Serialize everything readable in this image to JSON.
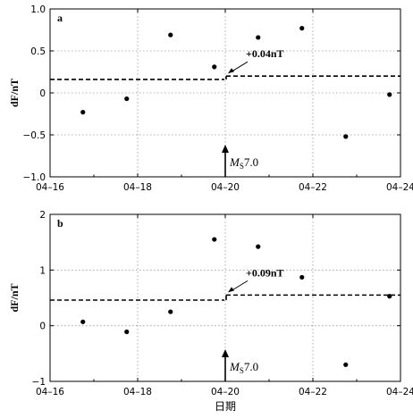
{
  "chart_data": [
    {
      "panel": "a",
      "type": "scatter",
      "xlabel": "",
      "ylabel": "dF/nT",
      "x_ticks": [
        "04–16",
        "04–18",
        "04–20",
        "04–22",
        "04–24"
      ],
      "y_ticks": [
        "1.0",
        "0.5",
        "0",
        "−0.5",
        "−1.0"
      ],
      "xlim": [
        0,
        8
      ],
      "ylim": [
        -1.0,
        1.0
      ],
      "yticks": [
        1.0,
        0.5,
        0,
        -0.5,
        -1.0
      ],
      "grid": true,
      "points": [
        {
          "x": 0.75,
          "y": -0.23
        },
        {
          "x": 1.75,
          "y": -0.07
        },
        {
          "x": 2.75,
          "y": 0.69
        },
        {
          "x": 3.75,
          "y": 0.31
        },
        {
          "x": 4.75,
          "y": 0.66
        },
        {
          "x": 5.75,
          "y": 0.77
        },
        {
          "x": 6.75,
          "y": -0.52
        },
        {
          "x": 7.75,
          "y": -0.02
        }
      ],
      "mean_before": 0.16,
      "mean_after": 0.2,
      "step_x": 4.0,
      "change_annotation": "+0.04nT",
      "event_label_main": "M",
      "event_label_sub": "S",
      "event_label_value": "7.0",
      "event_x": 4.0
    },
    {
      "panel": "b",
      "type": "scatter",
      "xlabel": "日期",
      "ylabel": "dF/nT",
      "x_ticks": [
        "04–16",
        "04–18",
        "04–20",
        "04–22",
        "04–24"
      ],
      "y_ticks": [
        "2",
        "1",
        "0",
        "−1"
      ],
      "xlim": [
        0,
        8
      ],
      "ylim": [
        -1,
        2
      ],
      "yticks": [
        2,
        1,
        0,
        -1
      ],
      "grid": true,
      "points": [
        {
          "x": 0.75,
          "y": 0.07
        },
        {
          "x": 1.75,
          "y": -0.11
        },
        {
          "x": 2.75,
          "y": 0.25
        },
        {
          "x": 3.75,
          "y": 1.55
        },
        {
          "x": 4.75,
          "y": 1.42
        },
        {
          "x": 5.75,
          "y": 0.87
        },
        {
          "x": 6.75,
          "y": -0.7
        },
        {
          "x": 7.75,
          "y": 0.53
        }
      ],
      "mean_before": 0.46,
      "mean_after": 0.55,
      "step_x": 4.0,
      "change_annotation": "+0.09nT",
      "event_label_main": "M",
      "event_label_sub": "S",
      "event_label_value": "7.0",
      "event_x": 4.0
    }
  ]
}
